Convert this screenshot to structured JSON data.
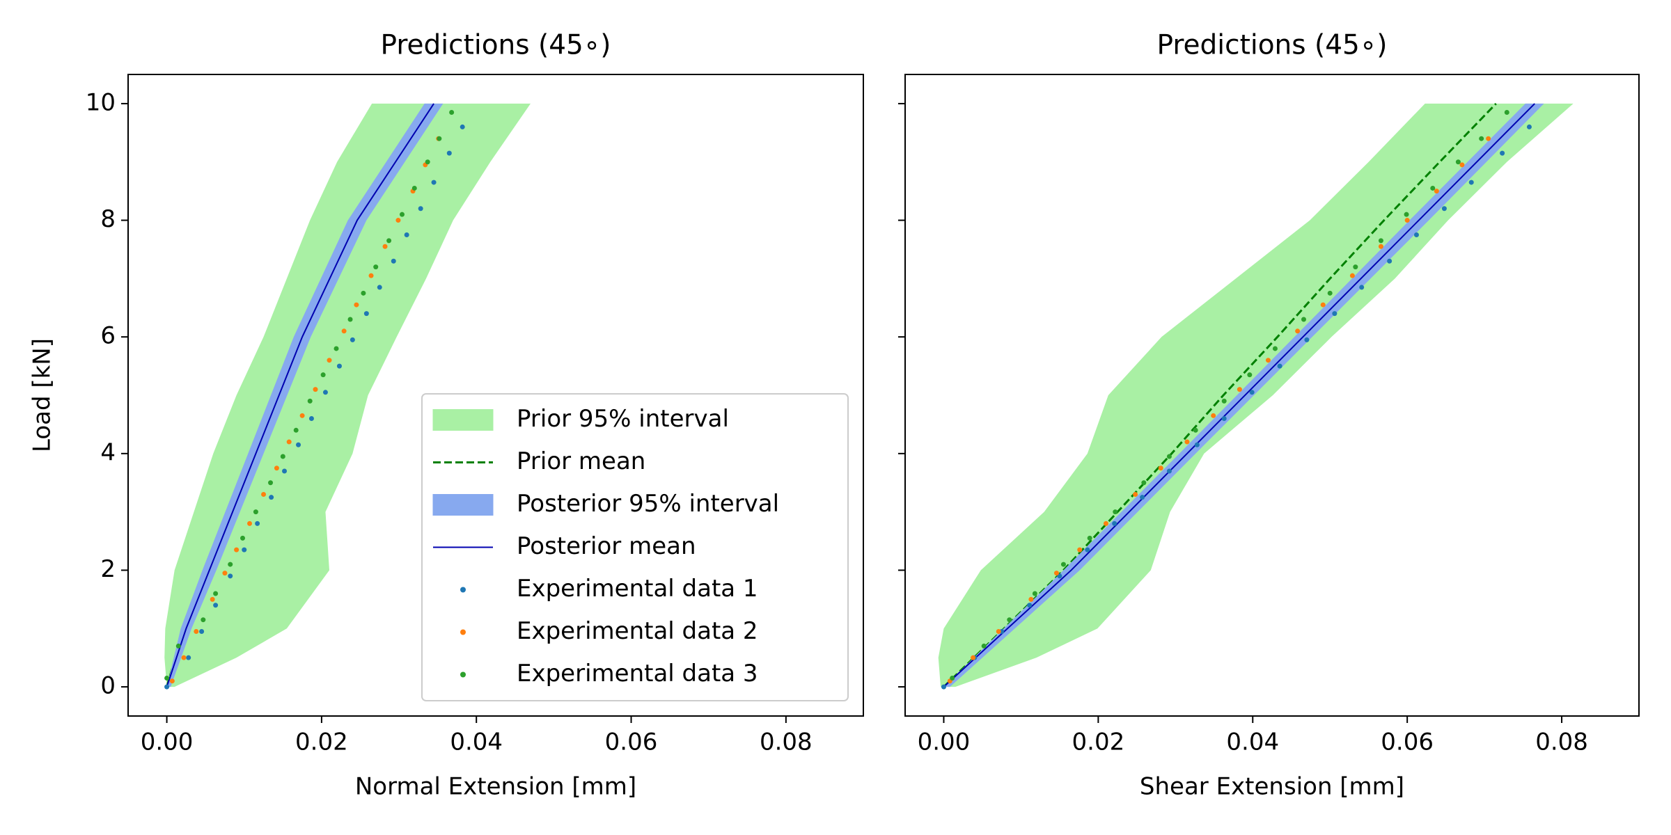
{
  "chart_data": [
    {
      "type": "line",
      "title": "Predictions (45∘)",
      "x_label": "Normal Extension [mm]",
      "y_label": "Load [kN]",
      "xlim": [
        -0.005,
        0.09
      ],
      "ylim": [
        -0.5,
        10.5
      ],
      "xticks": [
        {
          "value": 0,
          "label": "0.00"
        },
        0.02,
        0.04,
        0.06,
        0.08
      ],
      "yticks": [
        0,
        2,
        4,
        6,
        8,
        10
      ],
      "legend": "lower right",
      "series": [
        {
          "name": "Prior 95% interval",
          "kind": "band",
          "color": "#a9f0a4",
          "values": [
            0,
            0.5,
            1,
            2,
            3,
            4,
            5,
            6,
            7,
            8,
            9,
            10
          ],
          "x_lower": [
            0,
            -0.0003,
            -0.0002,
            0.001,
            0.0035,
            0.006,
            0.009,
            0.0125,
            0.0155,
            0.0185,
            0.022,
            0.0265
          ],
          "x_upper": [
            0.001,
            0.009,
            0.0155,
            0.021,
            0.0205,
            0.024,
            0.026,
            0.0297,
            0.0335,
            0.037,
            0.0418,
            0.047
          ]
        },
        {
          "name": "Prior mean",
          "kind": "line",
          "style": "dashed",
          "color": "#008000",
          "values": [
            0,
            1,
            2,
            4,
            6,
            8,
            10
          ],
          "x": [
            0,
            0.0022,
            0.0052,
            0.0112,
            0.0172,
            0.0243,
            0.0343
          ]
        },
        {
          "name": "Posterior 95% interval",
          "kind": "band",
          "color": "#87a9ef",
          "values": [
            0,
            1,
            2,
            4,
            6,
            8,
            10
          ],
          "x_lower": [
            0,
            0.0018,
            0.0046,
            0.0105,
            0.0164,
            0.0234,
            0.0333
          ],
          "x_upper": [
            0.0005,
            0.0032,
            0.0064,
            0.0125,
            0.0186,
            0.0258,
            0.0357
          ]
        },
        {
          "name": "Posterior mean",
          "kind": "line",
          "style": "solid",
          "color": "#0000b0",
          "values": [
            0,
            1,
            2,
            4,
            6,
            8,
            10
          ],
          "x": [
            0,
            0.0025,
            0.0055,
            0.0115,
            0.0175,
            0.0246,
            0.0345
          ]
        },
        {
          "name": "Experimental data 1",
          "kind": "scatter",
          "color": "#1f77b4",
          "values": [
            0,
            0.5,
            0.95,
            1.4,
            1.9,
            2.35,
            2.8,
            3.25,
            3.7,
            4.15,
            4.6,
            5.05,
            5.5,
            5.95,
            6.4,
            6.85,
            7.3,
            7.75,
            8.2,
            8.65,
            9.15,
            9.6
          ],
          "x": [
            0,
            0.0028,
            0.0045,
            0.0063,
            0.0082,
            0.01,
            0.0117,
            0.0135,
            0.0152,
            0.017,
            0.0187,
            0.0205,
            0.0223,
            0.024,
            0.0258,
            0.0275,
            0.0293,
            0.031,
            0.0328,
            0.0345,
            0.0365,
            0.0382
          ]
        },
        {
          "name": "Experimental data 2",
          "kind": "scatter",
          "color": "#ff7f0e",
          "values": [
            0.1,
            0.5,
            0.95,
            1.5,
            1.95,
            2.35,
            2.8,
            3.3,
            3.75,
            4.2,
            4.65,
            5.1,
            5.6,
            6.1,
            6.55,
            7.05,
            7.55,
            8.0,
            8.5,
            8.95,
            9.4
          ],
          "x": [
            0.0007,
            0.0022,
            0.0038,
            0.0059,
            0.0075,
            0.009,
            0.0107,
            0.0125,
            0.0142,
            0.0158,
            0.0175,
            0.0192,
            0.021,
            0.0229,
            0.0245,
            0.0264,
            0.0282,
            0.0299,
            0.0318,
            0.0334,
            0.0351
          ]
        },
        {
          "name": "Experimental data 3",
          "kind": "scatter",
          "color": "#2ca02c",
          "values": [
            0.15,
            0.7,
            1.15,
            1.6,
            2.1,
            2.55,
            3.0,
            3.5,
            3.95,
            4.4,
            4.9,
            5.35,
            5.8,
            6.3,
            6.75,
            7.2,
            7.65,
            8.1,
            8.55,
            9.0,
            9.4,
            9.85
          ],
          "x": [
            0.0,
            0.0015,
            0.0047,
            0.0063,
            0.0082,
            0.0098,
            0.0115,
            0.0134,
            0.015,
            0.0167,
            0.0185,
            0.0202,
            0.0219,
            0.0237,
            0.0254,
            0.027,
            0.0287,
            0.0304,
            0.032,
            0.0337,
            0.0352,
            0.0368
          ]
        }
      ]
    },
    {
      "type": "line",
      "title": "Predictions (45∘)",
      "x_label": "Shear Extension [mm]",
      "xlim": [
        -0.005,
        0.09
      ],
      "ylim": [
        -0.5,
        10.5
      ],
      "xticks": [
        {
          "value": 0,
          "label": "0.00"
        },
        0.02,
        0.04,
        0.06,
        0.08
      ],
      "yticks": [
        0,
        2,
        4,
        6,
        8,
        10
      ],
      "show_ytick_labels": false,
      "series": [
        {
          "kind": "band",
          "color": "#a9f0a4",
          "values": [
            0,
            0.5,
            1,
            2,
            3,
            4,
            5,
            6,
            7,
            8,
            9,
            10
          ],
          "x_lower": [
            -0.0004,
            -0.0007,
            0,
            0.0048,
            0.013,
            0.0186,
            0.0213,
            0.0282,
            0.0378,
            0.0474,
            0.055,
            0.0623
          ],
          "x_upper": [
            0.0015,
            0.012,
            0.0199,
            0.0268,
            0.0293,
            0.0337,
            0.0426,
            0.0502,
            0.0584,
            0.0653,
            0.0729,
            0.0815
          ]
        },
        {
          "kind": "line",
          "style": "dashed",
          "color": "#008000",
          "values": [
            0,
            1,
            2,
            3,
            4,
            5,
            6,
            7,
            8,
            9,
            10
          ],
          "x": [
            0,
            0.0078,
            0.0155,
            0.0225,
            0.0295,
            0.0362,
            0.0432,
            0.05,
            0.057,
            0.0642,
            0.0715
          ]
        },
        {
          "kind": "band",
          "color": "#87a9ef",
          "values": [
            0,
            2,
            4,
            6,
            8,
            10
          ],
          "x_lower": [
            0,
            0.0155,
            0.0305,
            0.0454,
            0.0603,
            0.0753
          ],
          "x_upper": [
            0.0008,
            0.0176,
            0.0326,
            0.0477,
            0.0628,
            0.0777
          ]
        },
        {
          "kind": "line",
          "style": "solid",
          "color": "#0000b0",
          "values": [
            0,
            2,
            4,
            6,
            8,
            10
          ],
          "x": [
            0,
            0.0165,
            0.0315,
            0.0465,
            0.0615,
            0.0765
          ]
        },
        {
          "kind": "scatter",
          "color": "#1f77b4",
          "values": [
            0,
            0.5,
            0.95,
            1.4,
            1.9,
            2.35,
            2.8,
            3.25,
            3.7,
            4.15,
            4.6,
            5.05,
            5.5,
            5.95,
            6.4,
            6.85,
            7.3,
            7.75,
            8.2,
            8.65,
            9.15,
            9.6
          ],
          "x": [
            0,
            0.004,
            0.0075,
            0.0111,
            0.015,
            0.0186,
            0.0221,
            0.0257,
            0.0292,
            0.0328,
            0.0363,
            0.0399,
            0.0435,
            0.047,
            0.0506,
            0.0541,
            0.0577,
            0.0612,
            0.0648,
            0.0683,
            0.0723,
            0.0758
          ]
        },
        {
          "kind": "scatter",
          "color": "#ff7f0e",
          "values": [
            0.1,
            0.5,
            0.95,
            1.5,
            1.95,
            2.35,
            2.8,
            3.3,
            3.75,
            4.2,
            4.65,
            5.1,
            5.6,
            6.1,
            6.55,
            7.05,
            7.55,
            8.0,
            8.5,
            8.95,
            9.4
          ],
          "x": [
            0.0008,
            0.0038,
            0.0071,
            0.0113,
            0.0146,
            0.0176,
            0.021,
            0.0248,
            0.0281,
            0.0315,
            0.0349,
            0.0383,
            0.042,
            0.0458,
            0.0491,
            0.0529,
            0.0566,
            0.06,
            0.0638,
            0.0671,
            0.0705
          ]
        },
        {
          "kind": "scatter",
          "color": "#2ca02c",
          "values": [
            0.15,
            0.7,
            1.15,
            1.6,
            2.1,
            2.55,
            3.0,
            3.5,
            3.95,
            4.4,
            4.9,
            5.35,
            5.8,
            6.3,
            6.75,
            7.2,
            7.65,
            8.1,
            8.55,
            9.0,
            9.4,
            9.85
          ],
          "x": [
            0.0011,
            0.0052,
            0.0085,
            0.0118,
            0.0155,
            0.0189,
            0.0222,
            0.0259,
            0.0292,
            0.0326,
            0.0363,
            0.0396,
            0.0429,
            0.0466,
            0.05,
            0.0533,
            0.0566,
            0.0599,
            0.0633,
            0.0666,
            0.0696,
            0.0729
          ]
        }
      ]
    }
  ]
}
